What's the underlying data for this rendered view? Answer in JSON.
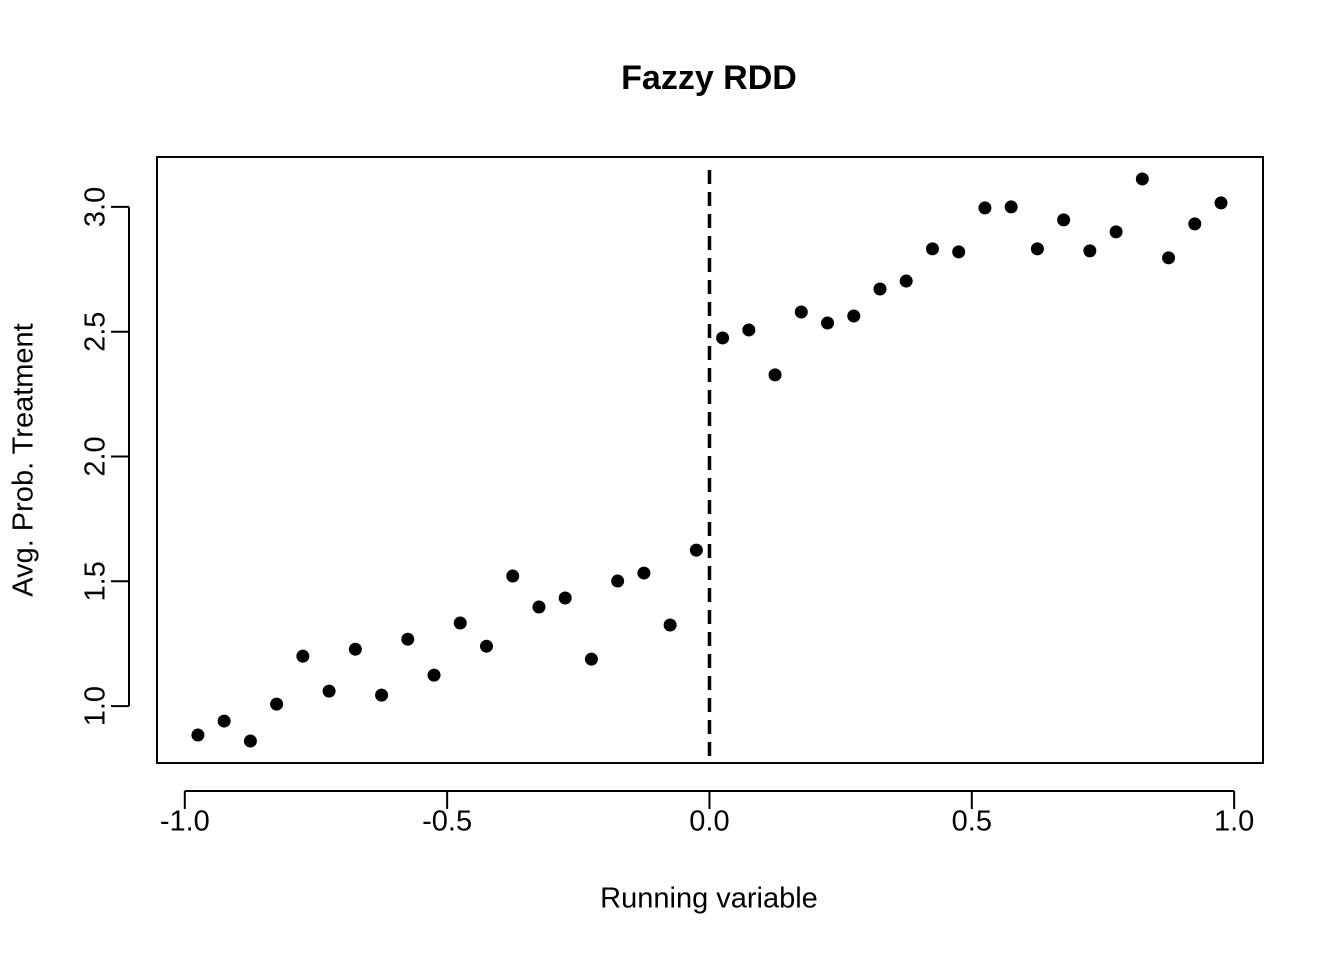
{
  "chart_data": {
    "type": "scatter",
    "title": "Fazzy RDD",
    "x_label": "Running variable",
    "y_label": "Avg. Prob. Treatment",
    "x": [
      -0.975,
      -0.925,
      -0.875,
      -0.825,
      -0.775,
      -0.725,
      -0.675,
      -0.625,
      -0.575,
      -0.525,
      -0.475,
      -0.425,
      -0.375,
      -0.325,
      -0.275,
      -0.225,
      -0.175,
      -0.125,
      -0.075,
      -0.025,
      0.025,
      0.075,
      0.125,
      0.175,
      0.225,
      0.275,
      0.325,
      0.375,
      0.425,
      0.475,
      0.525,
      0.575,
      0.625,
      0.675,
      0.725,
      0.775,
      0.825,
      0.875,
      0.925,
      0.975
    ],
    "values": [
      0.884,
      0.94,
      0.86,
      1.008,
      1.2,
      1.06,
      1.228,
      1.044,
      1.268,
      1.124,
      1.333,
      1.24,
      1.521,
      1.397,
      1.433,
      1.188,
      1.501,
      1.533,
      1.325,
      1.625,
      2.475,
      2.507,
      2.327,
      2.579,
      2.535,
      2.563,
      2.671,
      2.703,
      2.832,
      2.82,
      2.996,
      3.0,
      2.832,
      2.948,
      2.824,
      2.9,
      3.112,
      2.796,
      2.932,
      3.016
    ],
    "color": "#000000",
    "cutoff": 0,
    "xlim": [
      -1.053,
      1.055
    ],
    "ylim": [
      0.772,
      3.2
    ],
    "xticks": [
      {
        "value": -1,
        "label": "-1.0"
      },
      -0.5,
      {
        "value": 0,
        "label": "0.0"
      },
      0.5,
      {
        "value": 1,
        "label": "1.0"
      }
    ],
    "yticks": [
      {
        "value": 1,
        "label": "1.0"
      },
      1.5,
      {
        "value": 2,
        "label": "2.0"
      },
      2.5,
      {
        "value": 3,
        "label": "3.0"
      }
    ]
  }
}
